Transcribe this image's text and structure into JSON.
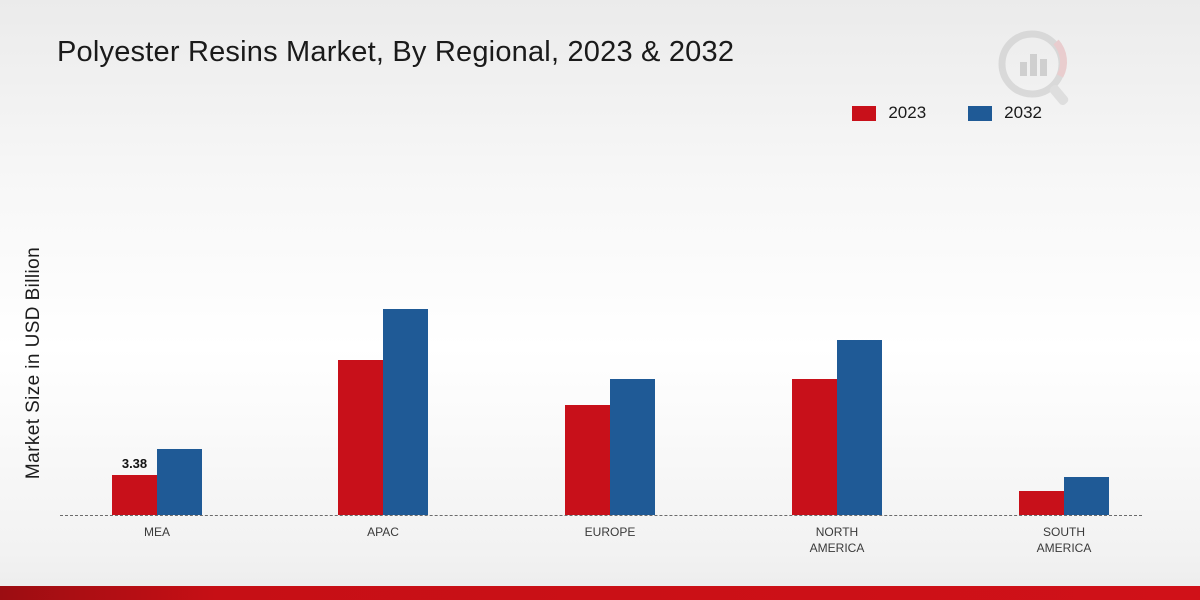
{
  "title": "Polyester Resins Market, By Regional, 2023 & 2032",
  "ylabel": "Market Size in USD Billion",
  "colors": {
    "series_2023": "#c8101a",
    "series_2032": "#1f5a96",
    "footer_strip": "#c60f15"
  },
  "chart_data": {
    "type": "bar",
    "title": "Polyester Resins Market, By Regional, 2023 & 2032",
    "xlabel": "",
    "ylabel": "Market Size in USD Billion",
    "ylim": [
      0,
      20
    ],
    "grid": false,
    "legend_position": "top-right",
    "categories": [
      "MEA",
      "APAC",
      "EUROPE",
      "NORTH AMERICA",
      "SOUTH AMERICA"
    ],
    "series": [
      {
        "name": "2023",
        "color": "#c8101a",
        "values": [
          3.38,
          13.1,
          9.3,
          11.5,
          2.0
        ]
      },
      {
        "name": "2032",
        "color": "#1f5a96",
        "values": [
          5.6,
          17.4,
          11.5,
          14.8,
          3.2
        ]
      }
    ],
    "annotations": [
      {
        "category": "MEA",
        "series": "2023",
        "text": "3.38"
      }
    ]
  }
}
